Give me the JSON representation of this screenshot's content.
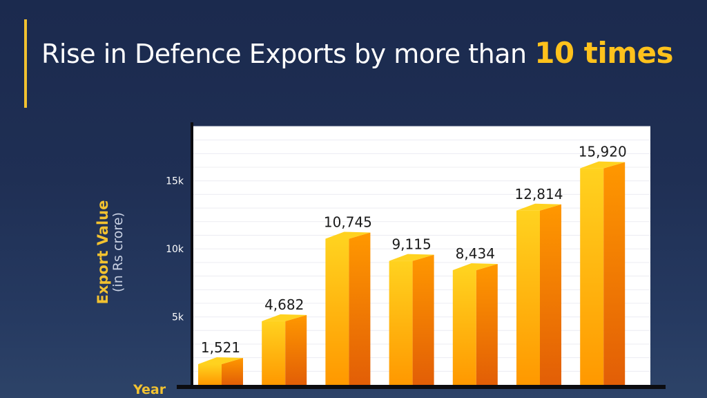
{
  "header": {
    "title_prefix": "Rise in Defence Exports by more than",
    "title_highlight": "10 times"
  },
  "axis": {
    "y_title": "Export Value",
    "y_subtitle": "(in Rs crore)",
    "x_title": "Year"
  },
  "colors": {
    "background": "#1f2f54",
    "accent": "#f2c230",
    "bar_front": "#ff9800",
    "bar_side": "#e25e06",
    "bar_top": "#ffd21f",
    "plot_background": "#ffffff"
  },
  "chart_data": {
    "type": "bar",
    "title": "Rise in Defence Exports by more than 10 times",
    "ylabel": "Export Value (in Rs crore)",
    "xlabel": "Year",
    "categories": [
      "",
      "",
      "",
      "",
      "",
      "",
      ""
    ],
    "values": [
      1521,
      4682,
      10745,
      9115,
      8434,
      12814,
      15920
    ],
    "value_labels": [
      "1,521",
      "4,682",
      "10,745",
      "9,115",
      "8,434",
      "12,814",
      "15,920"
    ],
    "yticks": [
      5000,
      10000,
      15000
    ],
    "ytick_labels": [
      "5k",
      "10k",
      "15k"
    ],
    "ylim": [
      0,
      19000
    ],
    "grid": true,
    "legend": "none"
  }
}
